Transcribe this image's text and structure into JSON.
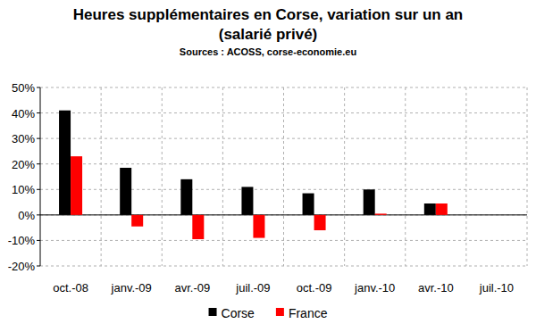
{
  "chart_data": {
    "type": "bar",
    "title": "Heures supplémentaires en Corse, variation sur un an (salarié privé)",
    "subtitle": "Sources : ACOSS, corse-economie.eu",
    "categories": [
      "oct.-08",
      "janv.-09",
      "avr.-09",
      "juil.-09",
      "oct.-09",
      "janv.-10",
      "avr.-10",
      "juil.-10"
    ],
    "series": [
      {
        "name": "Corse",
        "color": "#000000",
        "values": [
          41,
          18.5,
          14,
          11,
          8.5,
          10,
          4.5,
          null
        ]
      },
      {
        "name": "France",
        "color": "#ff0000",
        "values": [
          23,
          -4.5,
          -9.5,
          -9,
          -6,
          0.5,
          4.5,
          null
        ]
      }
    ],
    "ylim": [
      -20,
      50
    ],
    "yticks": [
      {
        "value": -20,
        "label": "-20%"
      },
      {
        "value": -10,
        "label": "-10%"
      },
      {
        "value": 0,
        "label": "0%"
      },
      {
        "value": 10,
        "label": "10%"
      },
      {
        "value": 20,
        "label": "20%"
      },
      {
        "value": 30,
        "label": "30%"
      },
      {
        "value": 40,
        "label": "40%"
      },
      {
        "value": 50,
        "label": "50%"
      }
    ],
    "grid": true,
    "legend": "bottom"
  }
}
